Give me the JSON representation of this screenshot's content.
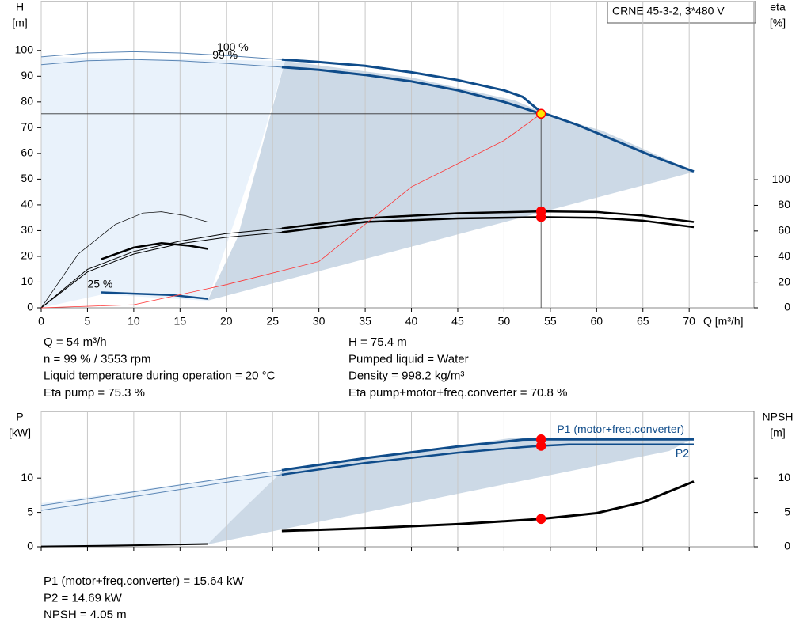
{
  "chart_data": [
    {
      "type": "line",
      "title": "CRNE 45-3-2, 3*480 V",
      "y_label": "H",
      "y_unit": "[m]",
      "y2_label": "eta",
      "y2_unit": "[%]",
      "x_label": "Q [m³/h]",
      "xlim": [
        0,
        77
      ],
      "xticks": [
        0,
        5,
        10,
        15,
        20,
        25,
        30,
        35,
        40,
        45,
        50,
        55,
        60,
        65,
        70
      ],
      "ylim": [
        0,
        119
      ],
      "yticks": [
        0,
        10,
        20,
        30,
        40,
        50,
        60,
        70,
        80,
        90,
        100
      ],
      "y2lim": [
        0,
        239
      ],
      "y2ticks": [
        0,
        20,
        40,
        60,
        80,
        100
      ],
      "grid": true,
      "series": [
        {
          "color": "#5b86b5",
          "line_width": 1,
          "x": [
            0,
            5,
            10,
            15,
            20,
            26
          ],
          "values": [
            97.5,
            99,
            99.5,
            99,
            98,
            96.5
          ]
        },
        {
          "color": "#0f4c8a",
          "line_width": 3,
          "x": [
            26,
            30,
            35,
            40,
            45,
            50,
            52,
            54,
            58,
            62,
            66,
            70.5
          ],
          "values": [
            96.5,
            95.5,
            94,
            91.5,
            88.5,
            84.5,
            82,
            76,
            71,
            65,
            59,
            53
          ]
        },
        {
          "color": "#5b86b5",
          "line_width": 1,
          "x": [
            0,
            5,
            10,
            15,
            20,
            26
          ],
          "values": [
            94.5,
            96,
            96.5,
            96,
            95,
            93.5
          ]
        },
        {
          "color": "#0f4c8a",
          "line_width": 3,
          "x": [
            26,
            30,
            35,
            40,
            45,
            50,
            54
          ],
          "values": [
            93.5,
            92.5,
            90.5,
            88,
            84.5,
            80,
            75.4
          ]
        },
        {
          "color": "#0f4c8a",
          "line_width": 2.5,
          "x": [
            6.5,
            10,
            14,
            18
          ],
          "values": [
            6,
            5.5,
            5,
            3.5
          ]
        },
        {
          "color": "#000000",
          "line_width": 1,
          "axis": "y2",
          "x": [
            0,
            5,
            10,
            15,
            20,
            26
          ],
          "values": [
            0,
            30,
            44,
            52,
            58,
            62
          ]
        },
        {
          "color": "#000000",
          "line_width": 2.5,
          "axis": "y2",
          "x": [
            26,
            35,
            45,
            54,
            60,
            65,
            70.5
          ],
          "values": [
            62,
            70,
            73.8,
            75.3,
            74.8,
            72,
            67
          ]
        },
        {
          "color": "#000000",
          "line_width": 1,
          "axis": "y2",
          "x": [
            0,
            5,
            10,
            15,
            20,
            26
          ],
          "values": [
            0,
            28,
            42,
            50,
            55,
            59
          ]
        },
        {
          "color": "#000000",
          "line_width": 2.5,
          "axis": "y2",
          "x": [
            26,
            35,
            45,
            54,
            60,
            65,
            70.5
          ],
          "values": [
            59,
            67,
            69.8,
            70.8,
            70.3,
            68,
            63
          ]
        },
        {
          "color": "#000000",
          "line_width": 0.7,
          "axis": "y2",
          "x": [
            0,
            4,
            8,
            11,
            13,
            15.5,
            18
          ],
          "values": [
            0,
            42,
            65,
            74,
            75,
            72,
            67
          ]
        },
        {
          "color": "#000000",
          "line_width": 2.5,
          "axis": "y2",
          "x": [
            6.5,
            10,
            13,
            16,
            18
          ],
          "values": [
            38,
            47,
            50.5,
            48.5,
            46
          ]
        },
        {
          "color": "#ff3030",
          "line_width": 0.8,
          "x": [
            0,
            10,
            20,
            30,
            40,
            50,
            54
          ],
          "values": [
            0,
            1.2,
            9,
            18,
            47,
            65,
            75.4
          ]
        }
      ],
      "curve_labels": [
        {
          "text": "100 %",
          "x": 19,
          "y": 101
        },
        {
          "text": "99 %",
          "x": 18.5,
          "y": 98
        },
        {
          "text": "25 %",
          "x": 5,
          "y": 9
        }
      ],
      "markers": [
        {
          "x": 54,
          "y": 75.4,
          "color": "#ffe600",
          "guides": true
        },
        {
          "x": 54,
          "y": 75.3,
          "axis": "y2",
          "color": "#ff0000"
        },
        {
          "x": 54,
          "y": 70.8,
          "axis": "y2",
          "color": "#ff0000"
        }
      ],
      "info_left": [
        "Q = 54 m³/h",
        "n = 99 % / 3553 rpm",
        "Liquid temperature during operation = 20 °C",
        "Eta pump = 75.3 %"
      ],
      "info_right": [
        "H = 75.4 m",
        "Pumped liquid = Water",
        "Density = 998.2 kg/m³",
        "Eta pump+motor+freq.converter = 70.8 %"
      ]
    },
    {
      "type": "line",
      "y_label": "P",
      "y_unit": "[kW]",
      "y2_label": "NPSH",
      "y2_unit": "[m]",
      "xlim": [
        0,
        77
      ],
      "xticks": [
        0,
        5,
        10,
        15,
        20,
        25,
        30,
        35,
        40,
        45,
        50,
        55,
        60,
        65,
        70
      ],
      "ylim": [
        0,
        19.7
      ],
      "yticks": [
        0,
        5,
        10
      ],
      "y2lim": [
        0,
        19.7
      ],
      "y2ticks": [
        0,
        5,
        10
      ],
      "grid": true,
      "series": [
        {
          "color": "#5b86b5",
          "line_width": 1,
          "x": [
            0,
            10,
            20,
            26
          ],
          "values": [
            6,
            8,
            10,
            11.15
          ]
        },
        {
          "name": "P1 (motor+freq.converter)",
          "color": "#0f4c8a",
          "line_width": 3,
          "x": [
            26,
            35,
            45,
            50,
            52,
            54,
            60,
            70.5
          ],
          "values": [
            11.15,
            12.9,
            14.6,
            15.3,
            15.6,
            15.64,
            15.64,
            15.64
          ]
        },
        {
          "color": "#5b86b5",
          "line_width": 1,
          "x": [
            0,
            10,
            20,
            26
          ],
          "values": [
            5.3,
            7.3,
            9.4,
            10.5
          ]
        },
        {
          "name": "P2",
          "color": "#0f4c8a",
          "line_width": 2.5,
          "x": [
            26,
            35,
            45,
            52,
            54,
            57,
            70.5
          ],
          "values": [
            10.5,
            12.2,
            13.7,
            14.5,
            14.69,
            14.9,
            14.9
          ]
        },
        {
          "color": "#000000",
          "line_width": 2,
          "axis": "y2",
          "x": [
            0,
            6.5,
            12,
            18
          ],
          "values": [
            0.05,
            0.15,
            0.25,
            0.4
          ]
        },
        {
          "color": "#000000",
          "line_width": 3,
          "axis": "y2",
          "x": [
            26,
            35,
            45,
            54,
            60,
            65,
            70.5
          ],
          "values": [
            2.3,
            2.7,
            3.3,
            4.05,
            4.9,
            6.5,
            9.5
          ]
        }
      ],
      "markers": [
        {
          "x": 54,
          "y": 15.64,
          "color": "#ff0000"
        },
        {
          "x": 54,
          "y": 14.69,
          "color": "#ff0000"
        },
        {
          "x": 54,
          "y": 4.05,
          "axis": "y2",
          "color": "#ff0000"
        }
      ],
      "info_left": [
        "P1 (motor+freq.converter) = 15.64 kW",
        "P2 = 14.69 kW",
        "NPSH = 4.05 m"
      ]
    }
  ]
}
